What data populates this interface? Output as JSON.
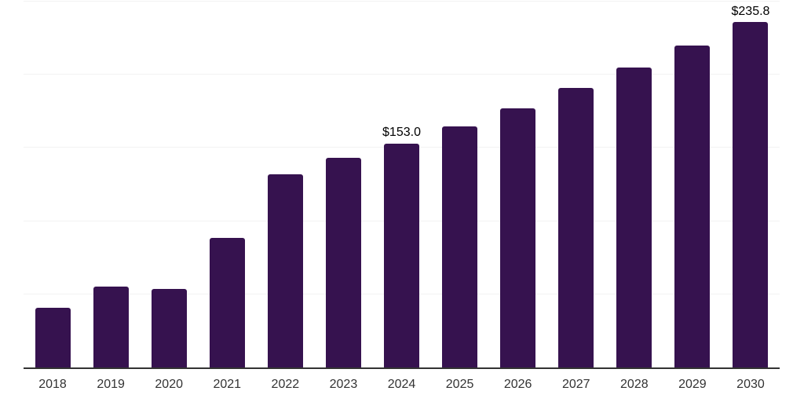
{
  "chart_data": {
    "type": "bar",
    "title": "",
    "xlabel": "",
    "ylabel": "",
    "categories": [
      "2018",
      "2019",
      "2020",
      "2021",
      "2022",
      "2023",
      "2024",
      "2025",
      "2026",
      "2027",
      "2028",
      "2029",
      "2030"
    ],
    "values": [
      40.6,
      55.5,
      53.4,
      88.7,
      131.9,
      143.1,
      153.0,
      164.5,
      177.3,
      191.2,
      205.1,
      220.0,
      235.8
    ],
    "data_labels": [
      "",
      "",
      "",
      "",
      "",
      "",
      "$153.0",
      "",
      "",
      "",
      "",
      "",
      "$235.8"
    ],
    "ylim": [
      0,
      250
    ],
    "gridline_values": [
      50,
      100,
      150,
      200,
      250
    ],
    "grid": "horizontal",
    "legend": "none"
  },
  "colors": {
    "bar": "#36124F",
    "axis_line": "#333333",
    "tick_label": "#333333",
    "data_label": "#000000",
    "gridline": "#F2F2F2",
    "background": "#FFFFFF"
  }
}
